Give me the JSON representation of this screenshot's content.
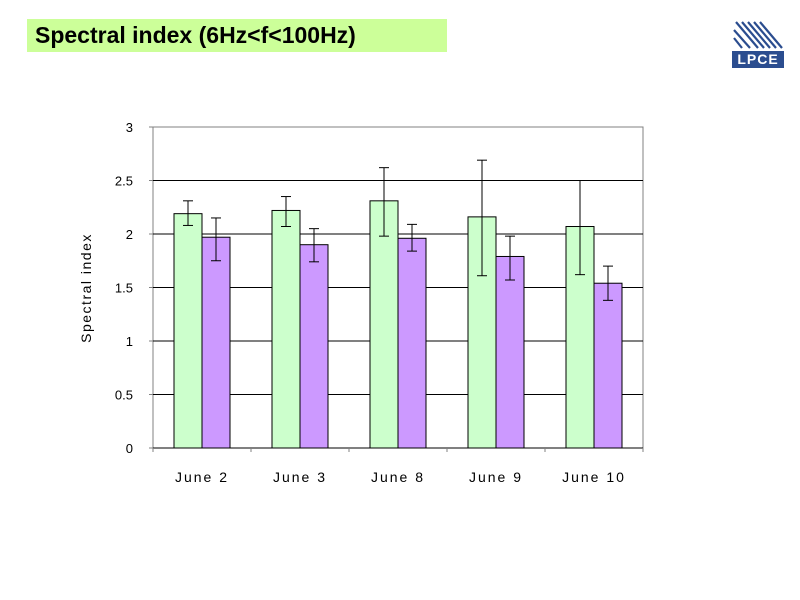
{
  "slide": {
    "title": "Spectral index (6Hz<f<100Hz)",
    "logo_text": "LPCE"
  },
  "colors": {
    "title_bg": "#ccff99",
    "series1": "#ccffcc",
    "series2": "#cc99ff",
    "logo": "#2b4d8f"
  },
  "chart_data": {
    "type": "bar",
    "categories": [
      "June 2",
      "June 3",
      "June 8",
      "June 9",
      "June 10"
    ],
    "series": [
      {
        "values": [
          2.19,
          2.22,
          2.31,
          2.16,
          2.07
        ],
        "err_low": [
          2.08,
          2.07,
          1.98,
          1.61,
          1.62
        ],
        "err_high": [
          2.31,
          2.35,
          2.62,
          2.69,
          2.5
        ]
      },
      {
        "values": [
          1.97,
          1.9,
          1.96,
          1.79,
          1.54
        ],
        "err_low": [
          1.75,
          1.74,
          1.84,
          1.57,
          1.38
        ],
        "err_high": [
          2.15,
          2.05,
          2.09,
          1.98,
          1.7
        ]
      }
    ],
    "ylabel": "Spectral index",
    "xlabel": "",
    "ylim": [
      0,
      3
    ],
    "yticks": [
      "0",
      "0.5",
      "1",
      "1.5",
      "2",
      "2.5",
      "3"
    ],
    "grid": true,
    "error_bars": true
  }
}
